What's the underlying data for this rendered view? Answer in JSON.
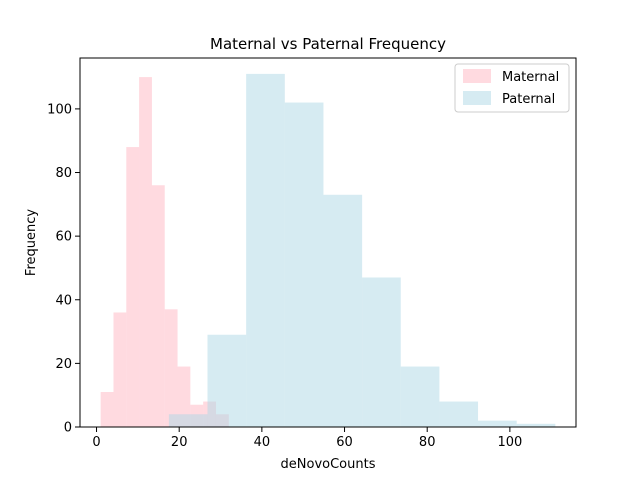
{
  "chart_data": {
    "type": "histogram",
    "title": "Maternal vs Paternal Frequency",
    "xlabel": "deNovoCounts",
    "ylabel": "Frequency",
    "xlim": [
      -4,
      116
    ],
    "ylim": [
      0,
      116
    ],
    "xticks": [
      0,
      20,
      40,
      60,
      80,
      100
    ],
    "yticks": [
      0,
      20,
      40,
      60,
      80,
      100
    ],
    "legend_position": "top-right",
    "series": [
      {
        "name": "Maternal",
        "color": "#ffb6c1",
        "opacity": 0.5,
        "bins": [
          {
            "x0": 1.0,
            "x1": 4.1,
            "count": 11
          },
          {
            "x0": 4.1,
            "x1": 7.2,
            "count": 36
          },
          {
            "x0": 7.2,
            "x1": 10.3,
            "count": 88
          },
          {
            "x0": 10.3,
            "x1": 13.4,
            "count": 110
          },
          {
            "x0": 13.4,
            "x1": 16.5,
            "count": 76
          },
          {
            "x0": 16.5,
            "x1": 19.6,
            "count": 37
          },
          {
            "x0": 19.6,
            "x1": 22.7,
            "count": 19
          },
          {
            "x0": 22.7,
            "x1": 25.8,
            "count": 7
          },
          {
            "x0": 25.8,
            "x1": 28.9,
            "count": 8
          },
          {
            "x0": 28.9,
            "x1": 32.0,
            "count": 4
          }
        ]
      },
      {
        "name": "Paternal",
        "color": "#add8e6",
        "opacity": 0.5,
        "bins": [
          {
            "x0": 17.5,
            "x1": 26.85,
            "count": 4
          },
          {
            "x0": 26.85,
            "x1": 36.2,
            "count": 29
          },
          {
            "x0": 36.2,
            "x1": 45.55,
            "count": 111
          },
          {
            "x0": 45.55,
            "x1": 54.9,
            "count": 102
          },
          {
            "x0": 54.9,
            "x1": 64.25,
            "count": 73
          },
          {
            "x0": 64.25,
            "x1": 73.6,
            "count": 47
          },
          {
            "x0": 73.6,
            "x1": 82.95,
            "count": 19
          },
          {
            "x0": 82.95,
            "x1": 92.3,
            "count": 8
          },
          {
            "x0": 92.3,
            "x1": 101.65,
            "count": 2
          },
          {
            "x0": 101.65,
            "x1": 111.0,
            "count": 1
          }
        ]
      }
    ]
  }
}
